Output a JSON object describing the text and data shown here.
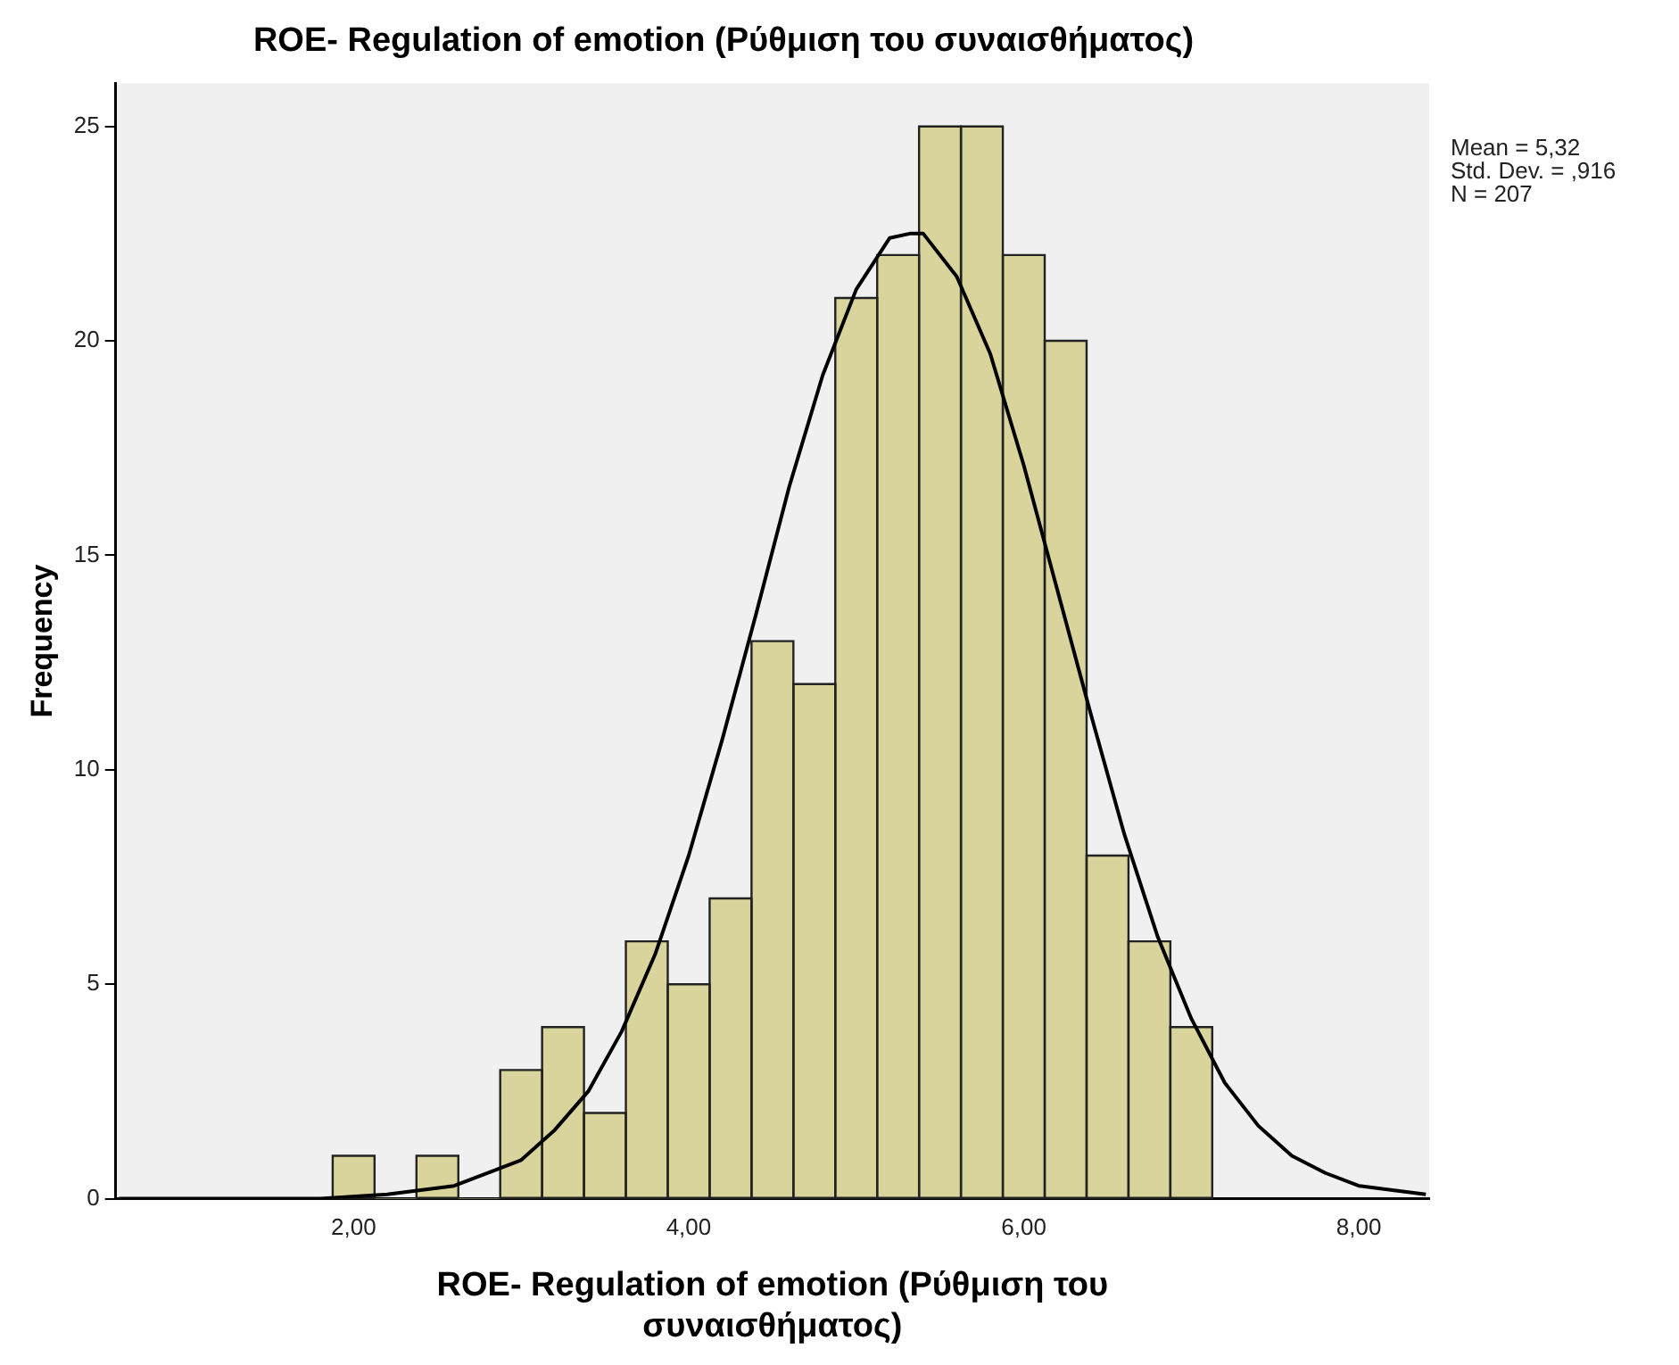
{
  "chart_data": {
    "type": "histogram",
    "title": "ROE- Regulation of emotion (Ρύθμιση του συναισθήματος)",
    "xlabel": "ROE- Regulation of emotion (Ρύθμιση του συναισθήματος)",
    "ylabel": "Frequency",
    "bins": [
      1.875,
      2.125,
      2.375,
      2.625,
      2.875,
      3.125,
      3.375,
      3.625,
      3.875,
      4.125,
      4.375,
      4.625,
      4.875,
      5.125,
      5.375,
      5.625,
      5.875,
      6.125,
      6.375,
      6.625,
      6.875,
      7.125
    ],
    "values": [
      1,
      0,
      1,
      0,
      3,
      4,
      2,
      6,
      5,
      7,
      13,
      12,
      21,
      22,
      25,
      25,
      22,
      20,
      8,
      6,
      4
    ],
    "color": "#d8d49c",
    "series": [
      {
        "type": "line",
        "color": "#000000",
        "x": [
          0.6,
          1.0,
          1.4,
          1.8,
          2.2,
          2.6,
          3.0,
          3.2,
          3.4,
          3.6,
          3.8,
          4.0,
          4.2,
          4.4,
          4.6,
          4.8,
          5.0,
          5.2,
          5.32,
          5.4,
          5.6,
          5.8,
          6.0,
          6.2,
          6.4,
          6.6,
          6.8,
          7.0,
          7.2,
          7.4,
          7.6,
          7.8,
          8.0,
          8.2,
          8.4
        ],
        "values": [
          0,
          0,
          0,
          0,
          0.1,
          0.3,
          0.9,
          1.6,
          2.5,
          3.9,
          5.7,
          8,
          10.7,
          13.6,
          16.6,
          19.2,
          21.2,
          22.4,
          22.5,
          22.5,
          21.5,
          19.7,
          17.1,
          14.2,
          11.3,
          8.5,
          6.1,
          4.2,
          2.7,
          1.7,
          1,
          0.6,
          0.3,
          0.2,
          0.1
        ]
      }
    ],
    "xlim": [
      0.58,
      8.42
    ],
    "xticks": [
      {
        "value": 2,
        "label": "2,00"
      },
      {
        "value": 4,
        "label": "4,00"
      },
      {
        "value": 6,
        "label": "6,00"
      },
      {
        "value": 8,
        "label": "8,00"
      }
    ],
    "ylim": [
      0,
      26
    ],
    "yticks": [
      0,
      5,
      10,
      15,
      20,
      25
    ],
    "grid": false,
    "legend": false,
    "marker": "none",
    "line_style": "solid",
    "annotations": [
      "Mean = 5,32",
      "Std. Dev. = ,916",
      "N = 207"
    ]
  }
}
